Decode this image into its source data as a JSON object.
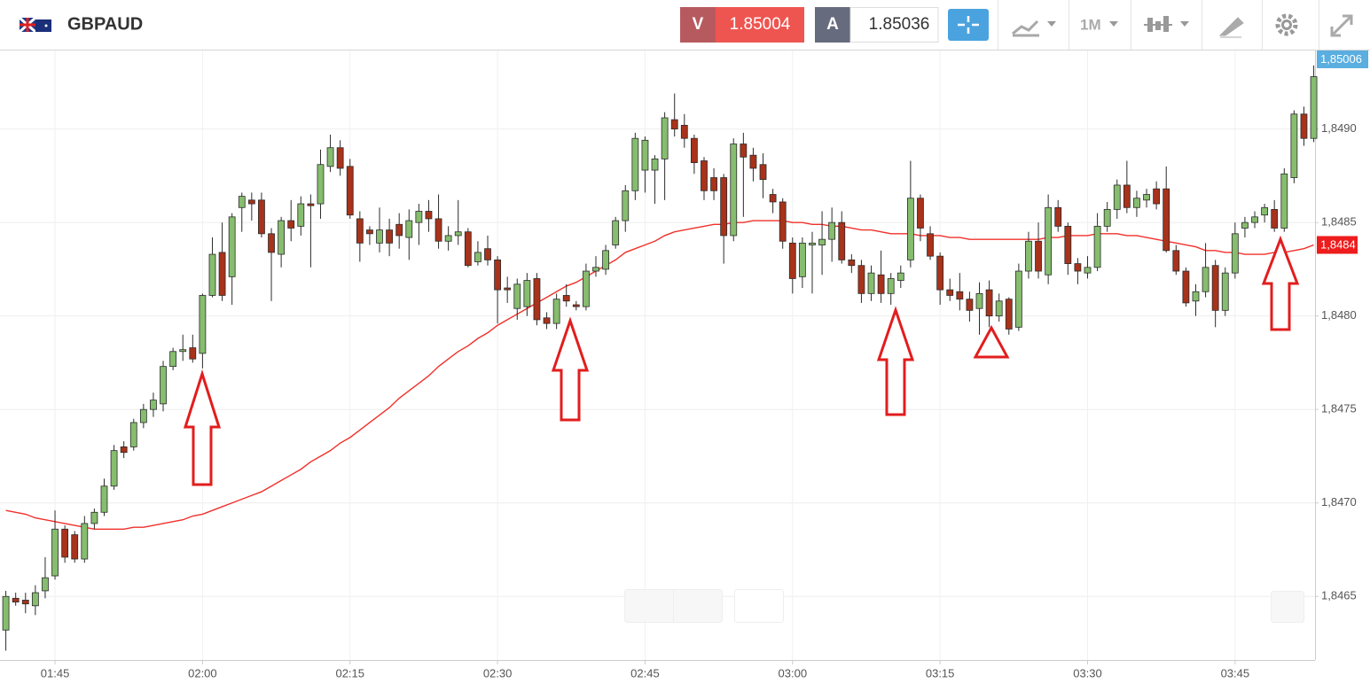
{
  "header": {
    "symbol": "GBPAUD",
    "sell_label": "V",
    "sell_price": "1.85004",
    "buy_label": "A",
    "buy_price": "1.85036",
    "timeframe": "1M"
  },
  "chart_data": {
    "type": "candlestick",
    "x": [
      null,
      null,
      null,
      null,
      null,
      "01:45",
      null,
      null,
      null,
      null,
      null,
      null,
      null,
      null,
      null,
      null,
      null,
      null,
      null,
      null,
      "02:00",
      null,
      null,
      null,
      null,
      null,
      null,
      null,
      null,
      null,
      null,
      null,
      null,
      null,
      null,
      "02:15",
      null,
      null,
      null,
      null,
      null,
      null,
      null,
      null,
      null,
      null,
      null,
      null,
      null,
      null,
      "02:30",
      null,
      null,
      null,
      null,
      null,
      null,
      null,
      null,
      null,
      null,
      null,
      null,
      null,
      null,
      "02:45",
      null,
      null,
      null,
      null,
      null,
      null,
      null,
      null,
      null,
      null,
      null,
      null,
      null,
      null,
      "03:00",
      null,
      null,
      null,
      null,
      null,
      null,
      null,
      null,
      null,
      null,
      null,
      null,
      null,
      null,
      "03:15",
      null,
      null,
      null,
      null,
      null,
      null,
      null,
      null,
      null,
      null,
      null,
      null,
      null,
      null,
      "03:30",
      null,
      null,
      null,
      null,
      null,
      null,
      null,
      null,
      null,
      null,
      null,
      null,
      null,
      null,
      "03:45",
      null,
      null,
      null,
      null,
      null,
      null,
      null,
      null
    ],
    "open": [
      1.84632,
      1.84649,
      1.84648,
      1.84645,
      1.84653,
      1.84661,
      1.84686,
      1.84683,
      1.8467,
      1.84689,
      1.84695,
      1.84709,
      1.8473,
      1.8473,
      1.84743,
      1.8475,
      1.84753,
      1.84773,
      1.84781,
      1.84783,
      1.8478,
      1.84811,
      1.84834,
      1.84821,
      1.84858,
      1.84862,
      1.84862,
      1.84844,
      1.84833,
      1.84851,
      1.84848,
      1.8486,
      1.8486,
      1.8488,
      1.8489,
      1.8488,
      1.84852,
      1.84846,
      1.84839,
      1.84846,
      1.84849,
      1.84842,
      1.8485,
      1.84856,
      1.84852,
      1.8484,
      1.84843,
      1.84845,
      1.84829,
      1.84836,
      1.8483,
      1.84815,
      1.84804,
      1.84805,
      1.8482,
      1.84799,
      1.84796,
      1.84811,
      1.84806,
      1.84805,
      1.84824,
      1.84825,
      1.84838,
      1.84851,
      1.84867,
      1.84878,
      1.84878,
      1.84884,
      1.84905,
      1.84902,
      1.84895,
      1.84883,
      1.84874,
      1.84874,
      1.84843,
      1.84892,
      1.84886,
      1.84881,
      1.84865,
      1.84861,
      1.84839,
      1.84821,
      1.84838,
      1.84838,
      1.84841,
      1.8485,
      1.8483,
      1.84827,
      1.84812,
      1.84822,
      1.84812,
      1.84819,
      1.8483,
      1.84863,
      1.84844,
      1.84832,
      1.84814,
      1.84813,
      1.84809,
      1.84804,
      1.84814,
      1.848,
      1.84809,
      1.84794,
      1.84824,
      1.8484,
      1.84822,
      1.84858,
      1.84848,
      1.84828,
      1.84823,
      1.84826,
      1.84848,
      1.84857,
      1.8487,
      1.84858,
      1.84862,
      1.84868,
      1.84868,
      1.84835,
      1.84824,
      1.84808,
      1.84813,
      1.84827,
      1.84803,
      1.84823,
      1.84847,
      1.8485,
      1.84854,
      1.84857,
      1.84847,
      1.84874,
      1.84908,
      1.84895
    ],
    "high": [
      1.84653,
      1.84652,
      1.84652,
      1.84656,
      1.84671,
      1.84696,
      1.84688,
      1.84685,
      1.84693,
      1.84697,
      1.84713,
      1.84731,
      1.84733,
      1.84745,
      1.84753,
      1.84759,
      1.84776,
      1.84783,
      1.8479,
      1.8479,
      1.84812,
      1.84842,
      1.8485,
      1.84855,
      1.84866,
      1.84866,
      1.84866,
      1.84847,
      1.84853,
      1.84862,
      1.84864,
      1.84865,
      1.84889,
      1.84897,
      1.84894,
      1.84884,
      1.84856,
      1.84848,
      1.84858,
      1.84852,
      1.84855,
      1.84857,
      1.8486,
      1.84862,
      1.84865,
      1.84848,
      1.84862,
      1.84847,
      1.8484,
      1.84843,
      1.84832,
      1.84821,
      1.8482,
      1.84823,
      1.84823,
      1.84802,
      1.84812,
      1.84817,
      1.84808,
      1.84828,
      1.84832,
      1.84838,
      1.84853,
      1.8487,
      1.84898,
      1.84896,
      1.84886,
      1.84909,
      1.84919,
      1.84908,
      1.84897,
      1.84885,
      1.84879,
      1.84876,
      1.84895,
      1.84898,
      1.8489,
      1.84887,
      1.84868,
      1.84863,
      1.84842,
      1.84842,
      1.84845,
      1.84856,
      1.84858,
      1.84856,
      1.84833,
      1.8483,
      1.84827,
      1.84835,
      1.84823,
      1.84827,
      1.84883,
      1.84865,
      1.84848,
      1.84834,
      1.8482,
      1.84823,
      1.84813,
      1.84818,
      1.84819,
      1.84812,
      1.8481,
      1.84828,
      1.84845,
      1.8485,
      1.84865,
      1.84862,
      1.8485,
      1.84831,
      1.84832,
      1.84855,
      1.84861,
      1.84873,
      1.84883,
      1.84867,
      1.84868,
      1.84872,
      1.8488,
      1.84838,
      1.84826,
      1.84817,
      1.84839,
      1.8483,
      1.84826,
      1.8485,
      1.84853,
      1.84856,
      1.8486,
      1.84862,
      1.84879,
      1.8491,
      1.84912,
      1.84934
    ],
    "low": [
      1.84621,
      1.84645,
      1.84641,
      1.8464,
      1.84649,
      1.84659,
      1.84668,
      1.84668,
      1.84668,
      1.84686,
      1.84693,
      1.84707,
      1.84724,
      1.84728,
      1.8474,
      1.84746,
      1.84749,
      1.84771,
      1.84776,
      1.84775,
      1.84772,
      1.8481,
      1.84808,
      1.84806,
      1.84845,
      1.84851,
      1.84842,
      1.84808,
      1.84826,
      1.8484,
      1.84843,
      1.84826,
      1.84852,
      1.84877,
      1.84875,
      1.84852,
      1.84829,
      1.84838,
      1.84834,
      1.84832,
      1.84836,
      1.8483,
      1.84838,
      1.84845,
      1.84836,
      1.84835,
      1.84838,
      1.84826,
      1.84827,
      1.84827,
      1.84796,
      1.84807,
      1.84798,
      1.848,
      1.84795,
      1.84793,
      1.84793,
      1.84805,
      1.84803,
      1.84803,
      1.84821,
      1.84822,
      1.84836,
      1.84845,
      1.84862,
      1.84866,
      1.8486,
      1.84862,
      1.84896,
      1.8489,
      1.84876,
      1.84862,
      1.84862,
      1.84828,
      1.8484,
      1.84853,
      1.84872,
      1.84863,
      1.84855,
      1.84836,
      1.84812,
      1.84815,
      1.84812,
      1.84822,
      1.84829,
      1.84828,
      1.84823,
      1.84807,
      1.84808,
      1.84807,
      1.84806,
      1.84815,
      1.84826,
      1.8484,
      1.8483,
      1.84806,
      1.84808,
      1.84803,
      1.84797,
      1.8479,
      1.84794,
      1.84797,
      1.8479,
      1.84792,
      1.8482,
      1.8482,
      1.84817,
      1.84845,
      1.84822,
      1.84817,
      1.8482,
      1.84824,
      1.84845,
      1.84852,
      1.84855,
      1.84853,
      1.84858,
      1.84857,
      1.84834,
      1.84822,
      1.84805,
      1.848,
      1.8481,
      1.84794,
      1.848,
      1.8482,
      1.84842,
      1.84847,
      1.8485,
      1.84845,
      1.84845,
      1.84871,
      1.84891,
      1.84893
    ],
    "close": [
      1.8465,
      1.84647,
      1.84646,
      1.84652,
      1.8466,
      1.84686,
      1.84671,
      1.8467,
      1.84689,
      1.84695,
      1.84709,
      1.84728,
      1.84727,
      1.84743,
      1.8475,
      1.84755,
      1.84773,
      1.84781,
      1.84782,
      1.84777,
      1.84811,
      1.84833,
      1.84811,
      1.84853,
      1.84864,
      1.8486,
      1.84844,
      1.84834,
      1.84851,
      1.84847,
      1.8486,
      1.84859,
      1.84881,
      1.8489,
      1.84879,
      1.84854,
      1.84839,
      1.84844,
      1.84846,
      1.84839,
      1.84843,
      1.84851,
      1.84856,
      1.84852,
      1.8484,
      1.84843,
      1.84845,
      1.84827,
      1.84834,
      1.8483,
      1.84814,
      1.84814,
      1.84817,
      1.84819,
      1.84798,
      1.84796,
      1.84809,
      1.84808,
      1.84805,
      1.84824,
      1.84826,
      1.84835,
      1.84851,
      1.84867,
      1.84895,
      1.84894,
      1.84884,
      1.84906,
      1.849,
      1.84895,
      1.84882,
      1.84867,
      1.84867,
      1.84843,
      1.84892,
      1.84885,
      1.84879,
      1.84873,
      1.84861,
      1.8484,
      1.8482,
      1.84839,
      1.84839,
      1.84841,
      1.8485,
      1.8483,
      1.84827,
      1.84812,
      1.84823,
      1.84812,
      1.8482,
      1.84823,
      1.84863,
      1.84847,
      1.84832,
      1.84814,
      1.84811,
      1.84809,
      1.84803,
      1.84812,
      1.848,
      1.84808,
      1.84793,
      1.84824,
      1.8484,
      1.84824,
      1.84858,
      1.84848,
      1.84828,
      1.84824,
      1.84826,
      1.84848,
      1.84857,
      1.8487,
      1.84858,
      1.84863,
      1.84865,
      1.8486,
      1.84835,
      1.84824,
      1.84807,
      1.84813,
      1.84826,
      1.84803,
      1.84823,
      1.84844,
      1.8485,
      1.84853,
      1.84858,
      1.84847,
      1.84876,
      1.84908,
      1.84895,
      1.84928
    ],
    "up_color": "#86bd6e",
    "down_color": "#a8321a",
    "moving_average": {
      "color": "#f0302a",
      "values": [
        1.84696,
        1.84695,
        1.84694,
        1.84692,
        1.84691,
        1.8469,
        1.84689,
        1.84688,
        1.84687,
        1.84686,
        1.84686,
        1.84686,
        1.84686,
        1.84687,
        1.84687,
        1.84688,
        1.84689,
        1.8469,
        1.84691,
        1.84693,
        1.84694,
        1.84696,
        1.84698,
        1.847,
        1.84702,
        1.84704,
        1.84706,
        1.84709,
        1.84712,
        1.84715,
        1.84718,
        1.84722,
        1.84725,
        1.84728,
        1.84732,
        1.84735,
        1.84739,
        1.84743,
        1.84747,
        1.84751,
        1.84756,
        1.8476,
        1.84764,
        1.84768,
        1.84773,
        1.84777,
        1.84781,
        1.84784,
        1.84788,
        1.84791,
        1.84795,
        1.84798,
        1.84801,
        1.84804,
        1.84807,
        1.8481,
        1.84813,
        1.84816,
        1.84818,
        1.84821,
        1.84824,
        1.84827,
        1.8483,
        1.84834,
        1.84836,
        1.84838,
        1.8484,
        1.84843,
        1.84845,
        1.84846,
        1.84847,
        1.84848,
        1.84849,
        1.84849,
        1.8485,
        1.8485,
        1.84851,
        1.84851,
        1.84851,
        1.84851,
        1.8485,
        1.8485,
        1.84849,
        1.84849,
        1.84848,
        1.84848,
        1.84847,
        1.84846,
        1.84846,
        1.84845,
        1.84844,
        1.84844,
        1.84844,
        1.84843,
        1.84843,
        1.84843,
        1.84842,
        1.84842,
        1.84841,
        1.84841,
        1.84841,
        1.84841,
        1.84841,
        1.84841,
        1.84841,
        1.84841,
        1.84842,
        1.84842,
        1.84843,
        1.84843,
        1.84843,
        1.84844,
        1.84844,
        1.84844,
        1.84843,
        1.84843,
        1.84842,
        1.84841,
        1.8484,
        1.84839,
        1.84838,
        1.84837,
        1.84835,
        1.84835,
        1.84834,
        1.84834,
        1.84833,
        1.84833,
        1.84833,
        1.84834,
        1.84834,
        1.84835,
        1.84836,
        1.84838
      ]
    },
    "last_price_label": "1,85006",
    "ma_label": "1,8484",
    "ylim": [
      1.84616,
      1.84942
    ],
    "yticks": [
      {
        "value": 1.8465,
        "label": "1,8465"
      },
      {
        "value": 1.847,
        "label": "1,8470"
      },
      {
        "value": 1.8475,
        "label": "1,8475"
      },
      {
        "value": 1.848,
        "label": "1,8480"
      },
      {
        "value": 1.8485,
        "label": "1,8485"
      },
      {
        "value": 1.849,
        "label": "1,8490"
      }
    ],
    "grid": true
  }
}
